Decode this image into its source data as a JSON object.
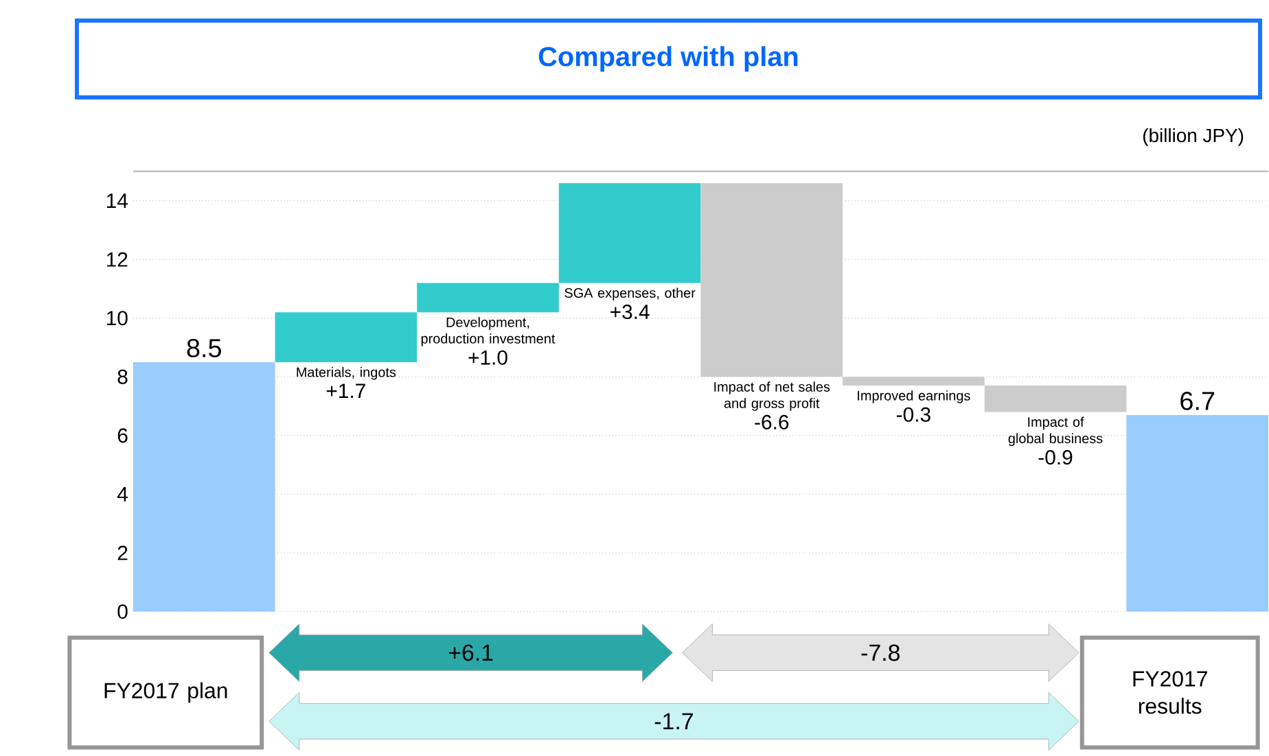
{
  "chart_data": {
    "type": "bar",
    "title": "Compared with plan",
    "ylabel": "(billion JPY)",
    "categories": [
      "FY2017 plan",
      "Materials, ingots",
      "Development, production investment",
      "SGA expenses, other",
      "Impact of net sales and gross profit",
      "Improved earnings",
      "Impact of global business",
      "FY2017 results"
    ],
    "values": [
      8.5,
      1.7,
      1.0,
      3.4,
      -6.6,
      -0.3,
      -0.9,
      6.7
    ],
    "base": [
      0,
      8.5,
      10.2,
      11.2,
      14.6,
      8.0,
      7.7,
      0
    ],
    "value_labels": [
      "8.5",
      "+1.7",
      "+1.0",
      "+3.4",
      "-6.6",
      "-0.3",
      "-0.9",
      "6.7"
    ],
    "colors": [
      "#99ccff",
      "#33cccc",
      "#33cccc",
      "#33cccc",
      "#cccccc",
      "#cccccc",
      "#cccccc",
      "#99ccff"
    ],
    "ylim": [
      0,
      15
    ],
    "yticks": [
      0,
      2,
      4,
      6,
      8,
      10,
      12,
      14
    ],
    "grid": "y",
    "annotations": [
      "+6.1",
      "-7.8",
      "-1.7"
    ]
  }
}
